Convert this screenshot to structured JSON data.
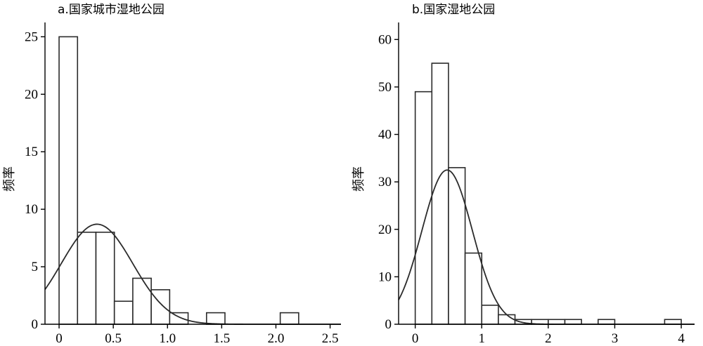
{
  "chart_data": [
    {
      "type": "histogram",
      "title": "a.国家城市湿地公园",
      "ylabel": "频率",
      "xlabel": "",
      "xlim": [
        -0.13,
        2.6
      ],
      "ylim": [
        0,
        26
      ],
      "xticks": [
        0,
        0.5,
        1.0,
        1.5,
        2.0,
        2.5
      ],
      "xtick_labels": [
        "0",
        "0.5",
        "1.0",
        "1.5",
        "2.0",
        "2.5"
      ],
      "yticks": [
        0,
        5,
        10,
        15,
        20,
        25
      ],
      "ytick_labels": [
        "0",
        "5",
        "10",
        "15",
        "20",
        "25"
      ],
      "bins": [
        {
          "x0": 0.0,
          "x1": 0.17,
          "count": 25
        },
        {
          "x0": 0.17,
          "x1": 0.34,
          "count": 8
        },
        {
          "x0": 0.34,
          "x1": 0.51,
          "count": 8
        },
        {
          "x0": 0.51,
          "x1": 0.68,
          "count": 2
        },
        {
          "x0": 0.68,
          "x1": 0.85,
          "count": 4
        },
        {
          "x0": 0.85,
          "x1": 1.02,
          "count": 3
        },
        {
          "x0": 1.02,
          "x1": 1.19,
          "count": 1
        },
        {
          "x0": 1.19,
          "x1": 1.36,
          "count": 0
        },
        {
          "x0": 1.36,
          "x1": 1.53,
          "count": 1
        },
        {
          "x0": 1.53,
          "x1": 1.7,
          "count": 0
        },
        {
          "x0": 1.7,
          "x1": 1.87,
          "count": 0
        },
        {
          "x0": 1.87,
          "x1": 2.04,
          "count": 0
        },
        {
          "x0": 2.04,
          "x1": 2.21,
          "count": 1
        }
      ],
      "normal_curve": {
        "mean": 0.35,
        "sd": 0.33,
        "peak": 8.7
      }
    },
    {
      "type": "histogram",
      "title": "b.国家湿地公园",
      "ylabel": "频率",
      "xlabel": "",
      "xlim": [
        -0.25,
        4.2
      ],
      "ylim": [
        0,
        63
      ],
      "xticks": [
        0,
        1,
        2,
        3,
        4
      ],
      "xtick_labels": [
        "0",
        "1",
        "2",
        "3",
        "4"
      ],
      "yticks": [
        0,
        10,
        20,
        30,
        40,
        50,
        60
      ],
      "ytick_labels": [
        "0",
        "10",
        "20",
        "30",
        "40",
        "50",
        "60"
      ],
      "bins": [
        {
          "x0": 0.0,
          "x1": 0.25,
          "count": 49
        },
        {
          "x0": 0.25,
          "x1": 0.5,
          "count": 55
        },
        {
          "x0": 0.5,
          "x1": 0.75,
          "count": 33
        },
        {
          "x0": 0.75,
          "x1": 1.0,
          "count": 15
        },
        {
          "x0": 1.0,
          "x1": 1.25,
          "count": 4
        },
        {
          "x0": 1.25,
          "x1": 1.5,
          "count": 2
        },
        {
          "x0": 1.5,
          "x1": 1.75,
          "count": 1
        },
        {
          "x0": 1.75,
          "x1": 2.0,
          "count": 1
        },
        {
          "x0": 2.0,
          "x1": 2.25,
          "count": 1
        },
        {
          "x0": 2.25,
          "x1": 2.5,
          "count": 1
        },
        {
          "x0": 2.75,
          "x1": 3.0,
          "count": 1
        },
        {
          "x0": 3.75,
          "x1": 4.0,
          "count": 1
        }
      ],
      "normal_curve": {
        "mean": 0.48,
        "sd": 0.38,
        "peak": 32.5
      }
    }
  ]
}
